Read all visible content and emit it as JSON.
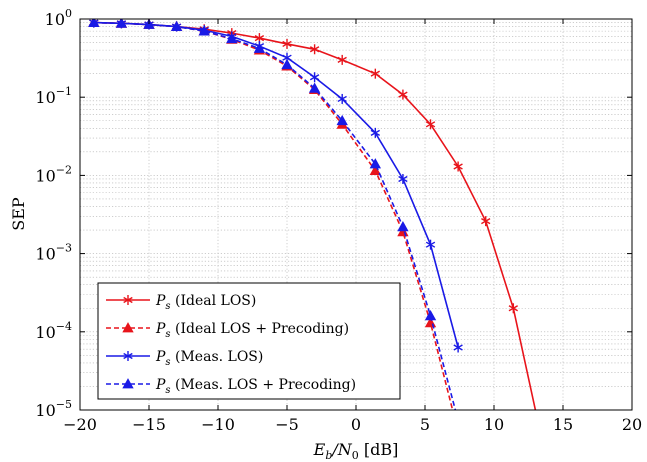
{
  "chart_data": {
    "type": "line",
    "title": "",
    "xlabel": "E_b/N_0 [dB]",
    "xlabel_parts": {
      "e": "E",
      "b": "b",
      "slash": "/N",
      "zero": "0",
      "unit": " [dB]"
    },
    "ylabel": "SEP",
    "xlim": [
      -20,
      20
    ],
    "ylim": [
      1e-05,
      1
    ],
    "yscale": "log",
    "grid": true,
    "legend_position": "bottom-left",
    "xticks": [
      "−20",
      "−15",
      "−10",
      "−5",
      "0",
      "5",
      "10",
      "15",
      "20"
    ],
    "xtick_values": [
      -20,
      -15,
      -10,
      -5,
      0,
      5,
      10,
      15,
      20
    ],
    "yticks": [
      {
        "base": "10",
        "exp": "0",
        "value": 1
      },
      {
        "base": "10",
        "exp": "−1",
        "value": 0.1
      },
      {
        "base": "10",
        "exp": "−2",
        "value": 0.01
      },
      {
        "base": "10",
        "exp": "−3",
        "value": 0.001
      },
      {
        "base": "10",
        "exp": "−4",
        "value": 0.0001
      },
      {
        "base": "10",
        "exp": "−5",
        "value": 1e-05
      }
    ],
    "series": [
      {
        "label_sym": "P",
        "label_sub": "s",
        "label_text": " (Ideal LOS)",
        "color": "#e8141b",
        "dash": false,
        "marker": "star",
        "x": [
          -19,
          -17,
          -15,
          -13,
          -11,
          -9,
          -7,
          -5,
          -3,
          -1,
          1.4,
          3.4,
          5.4,
          7.4,
          9.4,
          11.4,
          13
        ],
        "y": [
          0.9,
          0.88,
          0.85,
          0.8,
          0.74,
          0.66,
          0.57,
          0.48,
          0.41,
          0.3,
          0.2,
          0.108,
          0.045,
          0.013,
          0.0026,
          0.0002,
          1e-05
        ]
      },
      {
        "label_sym": "P",
        "label_sub": "s",
        "label_text": " (Ideal LOS + Precoding)",
        "color": "#e8141b",
        "dash": true,
        "marker": "triangle",
        "x": [
          -19,
          -17,
          -15,
          -13,
          -11,
          -9,
          -7,
          -5,
          -3,
          -1,
          1.4,
          3.4,
          5.4,
          7
        ],
        "y": [
          0.9,
          0.88,
          0.85,
          0.8,
          0.7,
          0.55,
          0.4,
          0.25,
          0.125,
          0.045,
          0.0115,
          0.0019,
          0.00013,
          1e-05
        ]
      },
      {
        "label_sym": "P",
        "label_sub": "s",
        "label_text": " (Meas. LOS)",
        "color": "#1a1ae6",
        "dash": false,
        "marker": "star",
        "x": [
          -19,
          -17,
          -15,
          -13,
          -11,
          -9,
          -7,
          -5,
          -3,
          -1,
          1.4,
          3.4,
          5.4,
          7.4
        ],
        "y": [
          0.9,
          0.88,
          0.85,
          0.8,
          0.72,
          0.6,
          0.45,
          0.32,
          0.18,
          0.095,
          0.035,
          0.009,
          0.0013,
          6.3e-05
        ]
      },
      {
        "label_sym": "P",
        "label_sub": "s",
        "label_text": " (Meas. LOS + Precoding)",
        "color": "#1a1ae6",
        "dash": true,
        "marker": "triangle",
        "x": [
          -19,
          -17,
          -15,
          -13,
          -11,
          -9,
          -7,
          -5,
          -3,
          -1,
          1.4,
          3.4,
          5.4,
          7.2
        ],
        "y": [
          0.9,
          0.88,
          0.85,
          0.8,
          0.7,
          0.56,
          0.42,
          0.26,
          0.13,
          0.05,
          0.014,
          0.0022,
          0.00016,
          1e-05
        ]
      }
    ]
  }
}
